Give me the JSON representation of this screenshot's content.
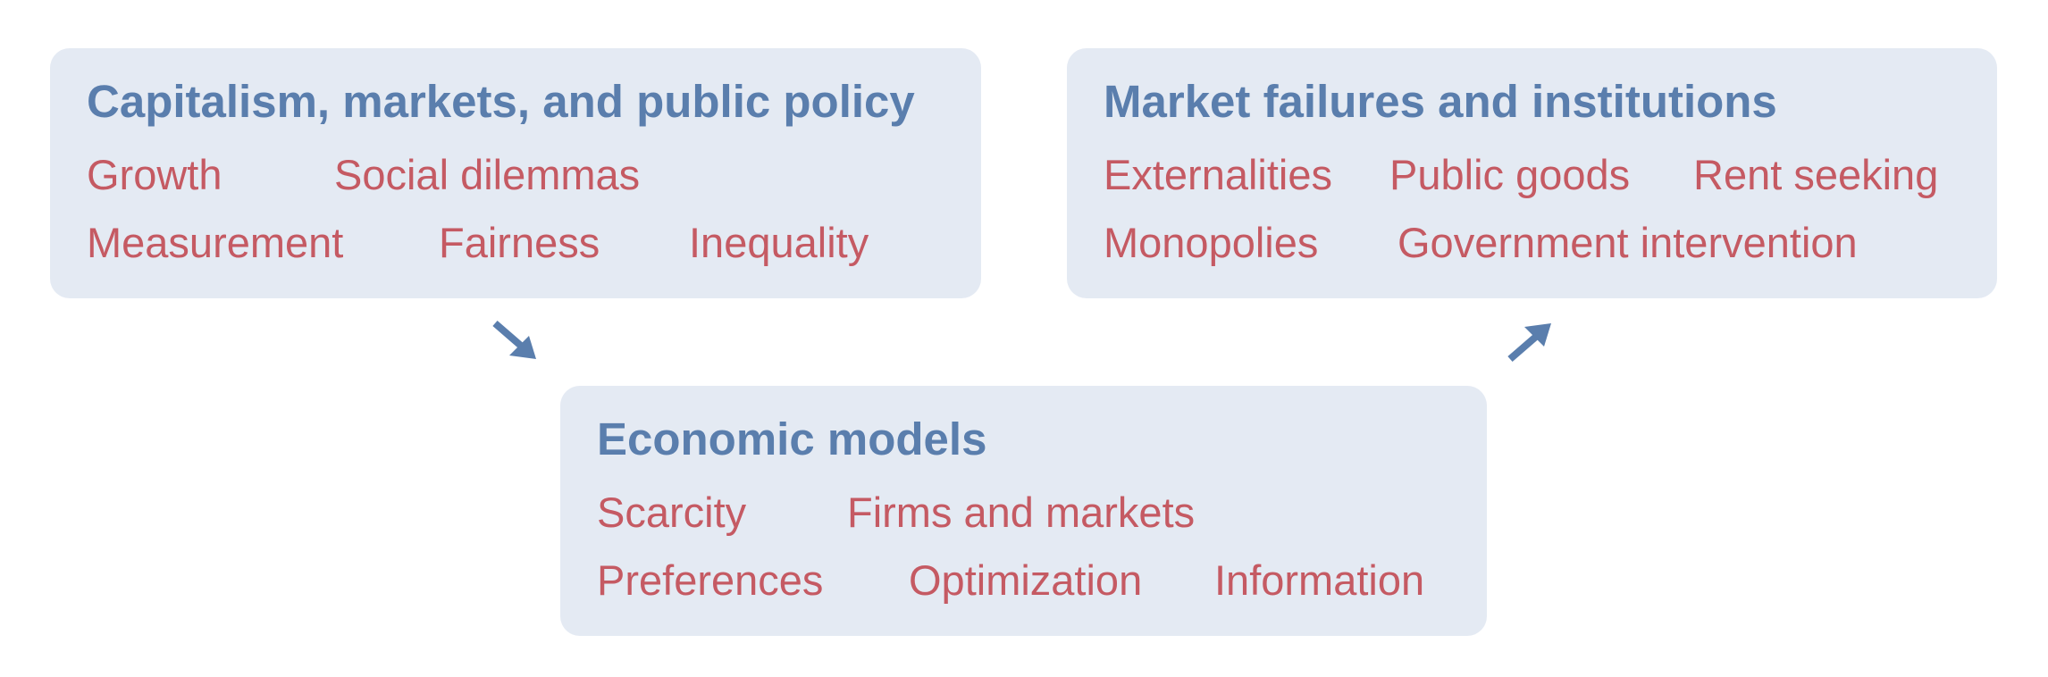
{
  "boxes": {
    "capitalism": {
      "title": "Capitalism, markets, and public policy",
      "topics": [
        "Growth",
        "Social dilemmas",
        "Measurement",
        "Fairness",
        "Inequality"
      ]
    },
    "market_failures": {
      "title": "Market failures and institutions",
      "topics": [
        "Externalities",
        "Public goods",
        "Rent seeking",
        "Monopolies",
        "Government intervention"
      ]
    },
    "economic_models": {
      "title": "Economic models",
      "topics": [
        "Scarcity",
        "Firms and markets",
        "Preferences",
        "Optimization",
        "Information"
      ]
    }
  },
  "arrows": [
    {
      "from": "Capitalism, markets, and public policy",
      "to": "Economic models"
    },
    {
      "from": "Economic models",
      "to": "Market failures and institutions"
    }
  ],
  "colors": {
    "box_fill": "#e4eaf3",
    "title": "#5a7ead",
    "topic": "#c55a63",
    "arrow": "#5a7ead"
  }
}
